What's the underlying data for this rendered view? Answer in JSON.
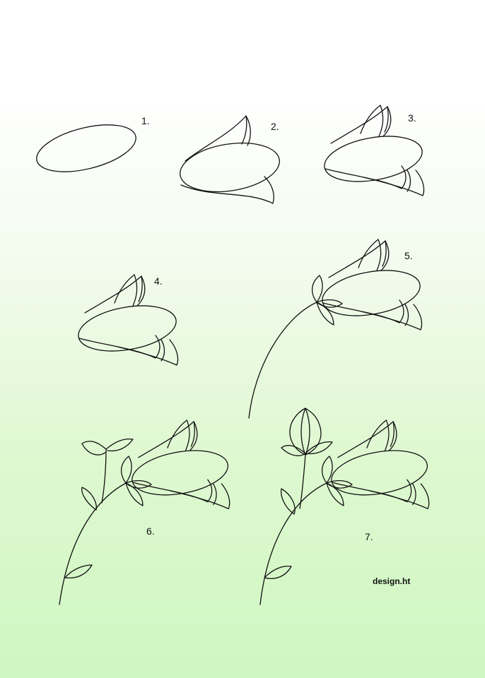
{
  "steps": [
    {
      "label": "1."
    },
    {
      "label": "2."
    },
    {
      "label": "3."
    },
    {
      "label": "4."
    },
    {
      "label": "5."
    },
    {
      "label": "6."
    },
    {
      "label": "7."
    }
  ],
  "credit": "design.ht",
  "colors": {
    "line": "#111111",
    "background_top": "#ffffff",
    "background_bottom": "#cff7c2"
  }
}
